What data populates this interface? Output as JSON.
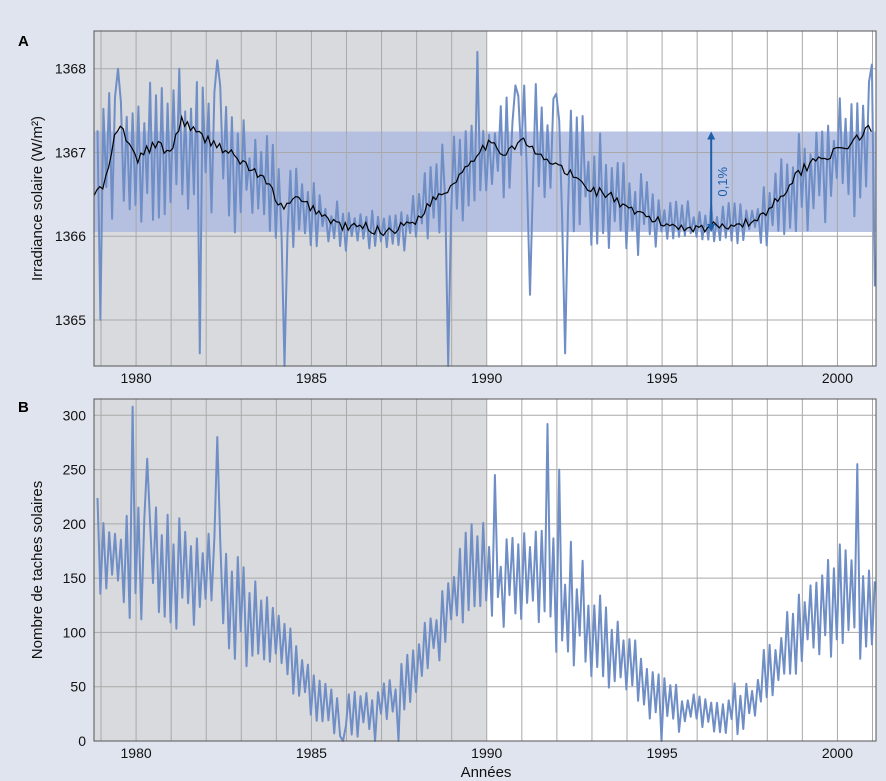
{
  "colors": {
    "background": "#dfe4ee",
    "shade": "#d9dadd",
    "band": "#aebbe0",
    "series": "#6f8ec6",
    "smooth": "#000000",
    "annotation": "#1f5fa8",
    "grid": "#a9a9a9"
  },
  "xlabel": "Années",
  "chart_data": [
    {
      "type": "line",
      "panel": "A",
      "ylabel": "Irradiance solaire (W/m²)",
      "ylim": [
        1364.45,
        1368.45
      ],
      "xlim": [
        1978.8,
        2001.1
      ],
      "x_ticks": [
        1980,
        1985,
        1990,
        1995,
        2000
      ],
      "y_ticks": [
        1365,
        1366,
        1367,
        1368
      ],
      "grid": true,
      "shaded_x_range": [
        1978.8,
        1990
      ],
      "band": [
        1366.05,
        1367.25
      ],
      "annotation": {
        "text": "0,1%",
        "x": 1996.4,
        "y_from": 1366.05,
        "y_to": 1367.25
      },
      "series": [
        {
          "type": "monthly",
          "x_start": 1978.9,
          "x_end": 2001.05,
          "centers": [
            [
              1978.8,
              1366.6
            ],
            [
              1979.5,
              1367.1
            ],
            [
              1980.5,
              1367.0
            ],
            [
              1981.3,
              1367.2
            ],
            [
              1982.0,
              1367.05
            ],
            [
              1982.7,
              1366.9
            ],
            [
              1983.5,
              1366.6
            ],
            [
              1984.3,
              1366.4
            ],
            [
              1985.0,
              1366.3
            ],
            [
              1985.6,
              1366.15
            ],
            [
              1986.3,
              1366.1
            ],
            [
              1987.0,
              1366.05
            ],
            [
              1987.6,
              1366.1
            ],
            [
              1988.3,
              1366.35
            ],
            [
              1989.0,
              1366.65
            ],
            [
              1989.6,
              1366.9
            ],
            [
              1990.3,
              1367.05
            ],
            [
              1991.0,
              1367.1
            ],
            [
              1991.7,
              1367.0
            ],
            [
              1992.5,
              1366.8
            ],
            [
              1993.3,
              1366.55
            ],
            [
              1994.0,
              1366.4
            ],
            [
              1994.7,
              1366.25
            ],
            [
              1995.5,
              1366.15
            ],
            [
              1996.5,
              1366.1
            ],
            [
              1997.4,
              1366.15
            ],
            [
              1998.0,
              1366.3
            ],
            [
              1998.8,
              1366.6
            ],
            [
              1999.5,
              1366.9
            ],
            [
              2000.2,
              1367.0
            ],
            [
              2001.1,
              1367.2
            ]
          ],
          "spread": [
            [
              1978.8,
              0.85
            ],
            [
              1982.5,
              0.85
            ],
            [
              1984.5,
              0.6
            ],
            [
              1985.5,
              0.3
            ],
            [
              1987.5,
              0.25
            ],
            [
              1989.0,
              0.6
            ],
            [
              1992.5,
              0.8
            ],
            [
              1994.5,
              0.5
            ],
            [
              1995.8,
              0.25
            ],
            [
              1997.5,
              0.3
            ],
            [
              1999.0,
              0.6
            ],
            [
              2001.1,
              0.9
            ]
          ],
          "spikes": [
            [
              1979.0,
              1365.0
            ],
            [
              1979.5,
              1368.0
            ],
            [
              1981.2,
              1368.0
            ],
            [
              1982.3,
              1368.1
            ],
            [
              1981.8,
              1364.6
            ],
            [
              1984.2,
              1364.4
            ],
            [
              1988.9,
              1364.4
            ],
            [
              1989.7,
              1368.2
            ],
            [
              1990.8,
              1367.8
            ],
            [
              1991.2,
              1365.3
            ],
            [
              1992.0,
              1367.7
            ],
            [
              1992.2,
              1364.6
            ],
            [
              1992.4,
              1367.5
            ],
            [
              2001.0,
              1368.05
            ],
            [
              2001.05,
              1365.4
            ]
          ]
        },
        {
          "type": "smoothed",
          "x": [
            1978.8,
            1979.1,
            1979.4,
            1979.6,
            1980.0,
            1980.5,
            1981.0,
            1981.3,
            1981.8,
            1982.3,
            1982.8,
            1983.3,
            1983.8,
            1984.2,
            1984.5,
            1985.0,
            1985.5,
            1986.0,
            1986.5,
            1987.0,
            1987.5,
            1988.0,
            1988.5,
            1989.0,
            1989.5,
            1990.0,
            1990.5,
            1991.0,
            1991.5,
            1992.0,
            1992.5,
            1993.0,
            1993.5,
            1994.0,
            1994.5,
            1995.0,
            1995.5,
            1996.0,
            1996.5,
            1997.0,
            1997.5,
            1998.0,
            1998.5,
            1999.0,
            1999.5,
            2000.0,
            2000.5,
            2001.0
          ],
          "y": [
            1366.5,
            1366.6,
            1367.2,
            1367.3,
            1366.9,
            1367.1,
            1367.0,
            1367.4,
            1367.2,
            1367.1,
            1366.95,
            1366.8,
            1366.6,
            1366.3,
            1366.45,
            1366.35,
            1366.2,
            1366.1,
            1366.12,
            1366.05,
            1366.1,
            1366.2,
            1366.45,
            1366.6,
            1366.9,
            1367.1,
            1367.0,
            1367.15,
            1366.95,
            1366.85,
            1366.7,
            1366.55,
            1366.5,
            1366.3,
            1366.25,
            1366.15,
            1366.12,
            1366.1,
            1366.12,
            1366.15,
            1366.15,
            1366.3,
            1366.55,
            1366.8,
            1366.95,
            1367.0,
            1367.15,
            1367.3
          ]
        }
      ]
    },
    {
      "type": "line",
      "panel": "B",
      "ylabel": "Nombre de taches solaires",
      "ylim": [
        0,
        315
      ],
      "xlim": [
        1978.8,
        2001.1
      ],
      "x_ticks": [
        1980,
        1985,
        1990,
        1995,
        2000
      ],
      "y_ticks": [
        0,
        50,
        100,
        150,
        200,
        250,
        300
      ],
      "grid": true,
      "shaded_x_range": [
        1978.8,
        1990
      ],
      "series": [
        {
          "type": "monthly",
          "x_start": 1978.9,
          "x_end": 2001.05,
          "centers": [
            [
              1978.8,
              170
            ],
            [
              1979.5,
              170
            ],
            [
              1980.5,
              165
            ],
            [
              1981.3,
              160
            ],
            [
              1982.0,
              150
            ],
            [
              1982.8,
              130
            ],
            [
              1983.5,
              110
            ],
            [
              1984.3,
              80
            ],
            [
              1985.0,
              45
            ],
            [
              1985.6,
              30
            ],
            [
              1986.3,
              22
            ],
            [
              1987.0,
              30
            ],
            [
              1987.6,
              45
            ],
            [
              1988.3,
              85
            ],
            [
              1989.0,
              130
            ],
            [
              1989.6,
              160
            ],
            [
              1990.3,
              150
            ],
            [
              1991.0,
              155
            ],
            [
              1991.7,
              145
            ],
            [
              1992.5,
              115
            ],
            [
              1993.3,
              95
            ],
            [
              1994.0,
              70
            ],
            [
              1994.7,
              45
            ],
            [
              1995.5,
              30
            ],
            [
              1996.5,
              20
            ],
            [
              1997.4,
              30
            ],
            [
              1998.0,
              60
            ],
            [
              1998.8,
              95
            ],
            [
              1999.5,
              120
            ],
            [
              2000.2,
              135
            ],
            [
              2001.1,
              130
            ]
          ],
          "spread": [
            [
              1978.8,
              50
            ],
            [
              1982.5,
              55
            ],
            [
              1984.5,
              35
            ],
            [
              1985.5,
              25
            ],
            [
              1987.5,
              25
            ],
            [
              1989.0,
              40
            ],
            [
              1992.5,
              55
            ],
            [
              1994.5,
              35
            ],
            [
              1995.8,
              20
            ],
            [
              1997.5,
              25
            ],
            [
              1999.0,
              40
            ],
            [
              2001.1,
              55
            ]
          ],
          "spikes": [
            [
              1979.9,
              308
            ],
            [
              1980.3,
              260
            ],
            [
              1982.3,
              280
            ],
            [
              1990.2,
              245
            ],
            [
              1991.7,
              292
            ],
            [
              1992.1,
              250
            ],
            [
              2000.6,
              255
            ],
            [
              1985.9,
              0
            ],
            [
              1986.8,
              0
            ],
            [
              1987.5,
              0
            ],
            [
              1995.0,
              0
            ]
          ]
        }
      ]
    }
  ]
}
